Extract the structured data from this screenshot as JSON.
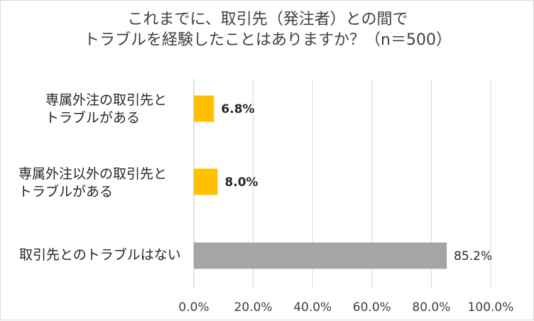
{
  "chart_data": {
    "type": "bar",
    "orientation": "horizontal",
    "title_lines": [
      "これまでに、取引先（発注者）との間で",
      "トラブルを経験したことはありますか？（n＝500）"
    ],
    "categories": [
      [
        "専属外注の取引先と",
        "トラブルがある"
      ],
      [
        "専属外注以外の取引先と",
        "トラブルがある"
      ],
      [
        "取引先とのトラブルはない"
      ]
    ],
    "values": [
      6.8,
      8.0,
      85.2
    ],
    "value_labels": [
      "6.8%",
      "8.0%",
      "85.2%"
    ],
    "value_label_bold": [
      true,
      true,
      false
    ],
    "bar_colors": [
      "#ffc000",
      "#ffc000",
      "#a5a5a5"
    ],
    "xlim": [
      0,
      100
    ],
    "xticks": [
      0,
      20,
      40,
      60,
      80,
      100
    ],
    "xtick_labels": [
      "0.0%",
      "20.0%",
      "40.0%",
      "60.0%",
      "80.0%",
      "100.0%"
    ],
    "grid": true,
    "xlabel": "",
    "ylabel": ""
  }
}
